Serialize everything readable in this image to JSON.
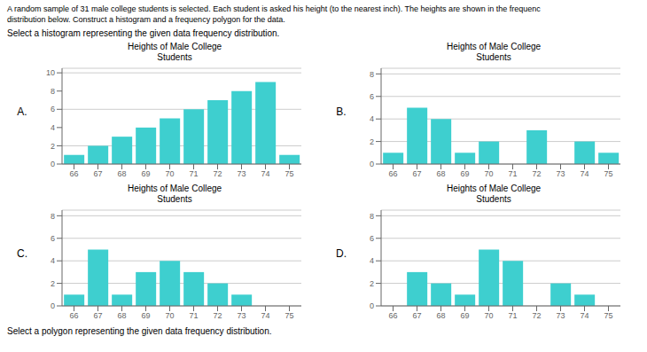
{
  "chart_data": [
    {
      "type": "bar",
      "title": "Heights of Male College\nStudents",
      "subtitle": "A.",
      "annotations": [
        "A random sample of 31 male college students is selected. Each student is asked his height (to the nearest inch). The heights are shown in the frequenc",
        "distribution below. Construct a histogram and a frequency polygon for the data.",
        "Select a histogram representing the given data frequency distribution."
      ],
      "categories": [
        "66",
        "67",
        "68",
        "69",
        "70",
        "71",
        "72",
        "73",
        "74",
        "75"
      ],
      "values": [
        1,
        2,
        3,
        4,
        5,
        6,
        7,
        8,
        9,
        1
      ],
      "color": "#3ecfcf",
      "ylim": [
        0,
        10.5
      ],
      "yticks": [
        0,
        2,
        4,
        6,
        8,
        10
      ],
      "grid": true
    },
    {
      "type": "bar",
      "title": "Heights of Male College\nStudents",
      "subtitle": "B.",
      "categories": [
        "66",
        "67",
        "68",
        "69",
        "70",
        "71",
        "72",
        "73",
        "74",
        "75"
      ],
      "values": [
        1,
        5,
        4,
        1,
        2,
        0,
        3,
        0,
        2,
        1
      ],
      "color": "#3ecfcf",
      "ylim": [
        0,
        8.5
      ],
      "yticks": [
        0,
        2,
        4,
        6,
        8
      ],
      "grid": true
    },
    {
      "type": "bar",
      "title": "Heights of Male College\nStudents",
      "subtitle": "C.",
      "categories": [
        "66",
        "67",
        "68",
        "69",
        "70",
        "71",
        "72",
        "73",
        "74",
        "75"
      ],
      "values": [
        1,
        5,
        1,
        3,
        4,
        3,
        2,
        1,
        0,
        0
      ],
      "color": "#3ecfcf",
      "ylim": [
        0,
        8.5
      ],
      "yticks": [
        0,
        2,
        4,
        6,
        8
      ],
      "grid": true
    },
    {
      "type": "bar",
      "title": "Heights of Male College\nStudents",
      "subtitle": "D.",
      "annotations": [
        "Select a polygon representing the given data frequency distribution."
      ],
      "categories": [
        "66",
        "67",
        "68",
        "69",
        "70",
        "71",
        "72",
        "73",
        "74",
        "75"
      ],
      "values": [
        0,
        3,
        2,
        1,
        5,
        4,
        0,
        2,
        1,
        0
      ],
      "color": "#3ecfcf",
      "ylim": [
        0,
        8.5
      ],
      "yticks": [
        0,
        2,
        4,
        6,
        8
      ],
      "grid": true
    }
  ]
}
